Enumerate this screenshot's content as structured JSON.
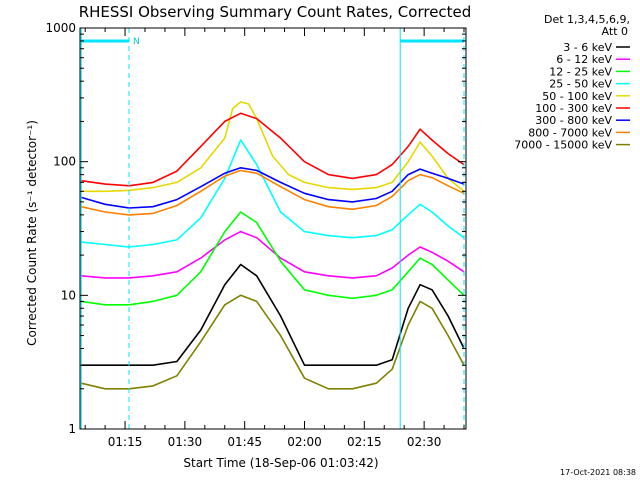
{
  "chart_data": {
    "type": "line",
    "title": "RHESSI Observing Summary Count Rates, Corrected",
    "xlabel": "Start Time (18-Sep-06 01:03:42)",
    "ylabel": "Corrected Count Rate (s⁻¹ detector⁻¹)",
    "y_scale": "log",
    "ylim": [
      1,
      1000
    ],
    "xlim": [
      "01:03:42",
      "02:40:30"
    ],
    "x_ticks": [
      "01:15",
      "01:30",
      "01:45",
      "02:00",
      "02:15",
      "02:30"
    ],
    "y_ticks": [
      "1",
      "10",
      "100",
      "1000"
    ],
    "legend_position": "outside-right",
    "legend_header": [
      "Det 1,3,4,5,6,9,",
      "Att 0"
    ],
    "series": [
      {
        "name": "3 - 6 keV",
        "color": "#000000",
        "times": [
          "01:04",
          "01:10",
          "01:16",
          "01:22",
          "01:28",
          "01:34",
          "01:40",
          "01:44",
          "01:48",
          "01:54",
          "02:00",
          "02:06",
          "02:12",
          "02:18",
          "02:22",
          "02:26",
          "02:29",
          "02:32",
          "02:36",
          "02:40"
        ],
        "values": [
          3.0,
          3.0,
          3.0,
          3.0,
          3.2,
          5.5,
          12,
          17,
          14,
          7,
          3.0,
          3.0,
          3.0,
          3.0,
          3.3,
          8,
          12,
          11,
          7,
          4
        ]
      },
      {
        "name": "6 - 12 keV",
        "color": "#ff00ff",
        "times": [
          "01:04",
          "01:10",
          "01:16",
          "01:22",
          "01:28",
          "01:34",
          "01:40",
          "01:44",
          "01:48",
          "01:54",
          "02:00",
          "02:06",
          "02:12",
          "02:18",
          "02:22",
          "02:26",
          "02:29",
          "02:32",
          "02:36",
          "02:40"
        ],
        "values": [
          14,
          13.5,
          13.5,
          14,
          15,
          19,
          26,
          30,
          27,
          19,
          15,
          14,
          13.5,
          14,
          16,
          20,
          23,
          21,
          18,
          15
        ]
      },
      {
        "name": "12 - 25 keV",
        "color": "#00ff00",
        "times": [
          "01:04",
          "01:10",
          "01:16",
          "01:22",
          "01:28",
          "01:34",
          "01:40",
          "01:44",
          "01:48",
          "01:54",
          "02:00",
          "02:06",
          "02:12",
          "02:18",
          "02:22",
          "02:26",
          "02:29",
          "02:32",
          "02:36",
          "02:40"
        ],
        "values": [
          9,
          8.5,
          8.5,
          9,
          10,
          15,
          30,
          42,
          35,
          18,
          11,
          10,
          9.5,
          10,
          11,
          15,
          19,
          17,
          13,
          10
        ]
      },
      {
        "name": "25 - 50 keV",
        "color": "#00ffff",
        "times": [
          "01:04",
          "01:10",
          "01:16",
          "01:22",
          "01:28",
          "01:34",
          "01:40",
          "01:44",
          "01:48",
          "01:54",
          "02:00",
          "02:06",
          "02:12",
          "02:18",
          "02:22",
          "02:26",
          "02:29",
          "02:32",
          "02:36",
          "02:40"
        ],
        "values": [
          25,
          24,
          23,
          24,
          26,
          38,
          75,
          145,
          95,
          42,
          30,
          28,
          27,
          28,
          31,
          40,
          48,
          42,
          33,
          27
        ]
      },
      {
        "name": "50 - 100 keV",
        "color": "#e6d800",
        "times": [
          "01:04",
          "01:10",
          "01:16",
          "01:22",
          "01:28",
          "01:34",
          "01:40",
          "01:42",
          "01:44",
          "01:46",
          "01:48",
          "01:52",
          "01:56",
          "02:00",
          "02:06",
          "02:12",
          "02:18",
          "02:22",
          "02:26",
          "02:29",
          "02:32",
          "02:36",
          "02:40"
        ],
        "values": [
          60,
          60,
          61,
          64,
          70,
          90,
          150,
          250,
          280,
          270,
          210,
          110,
          80,
          70,
          64,
          62,
          64,
          70,
          100,
          140,
          110,
          75,
          60
        ]
      },
      {
        "name": "100 - 300 keV",
        "color": "#ff0000",
        "times": [
          "01:04",
          "01:10",
          "01:16",
          "01:22",
          "01:28",
          "01:34",
          "01:40",
          "01:44",
          "01:48",
          "01:54",
          "02:00",
          "02:06",
          "02:12",
          "02:18",
          "02:22",
          "02:26",
          "02:29",
          "02:32",
          "02:36",
          "02:40"
        ],
        "values": [
          72,
          68,
          66,
          70,
          85,
          130,
          200,
          230,
          210,
          150,
          100,
          80,
          75,
          80,
          95,
          130,
          175,
          145,
          115,
          95
        ]
      },
      {
        "name": "300 - 800 keV",
        "color": "#0000ff",
        "times": [
          "01:04",
          "01:10",
          "01:16",
          "01:22",
          "01:28",
          "01:34",
          "01:40",
          "01:44",
          "01:48",
          "01:54",
          "02:00",
          "02:06",
          "02:12",
          "02:18",
          "02:22",
          "02:26",
          "02:29",
          "02:32",
          "02:36",
          "02:40"
        ],
        "values": [
          54,
          48,
          45,
          46,
          52,
          65,
          82,
          90,
          86,
          70,
          58,
          52,
          50,
          53,
          60,
          80,
          88,
          82,
          75,
          68
        ]
      },
      {
        "name": "800 - 7000 keV",
        "color": "#ff8000",
        "times": [
          "01:04",
          "01:10",
          "01:16",
          "01:22",
          "01:28",
          "01:34",
          "01:40",
          "01:44",
          "01:48",
          "01:54",
          "02:00",
          "02:06",
          "02:12",
          "02:18",
          "02:22",
          "02:26",
          "02:29",
          "02:32",
          "02:36",
          "02:40"
        ],
        "values": [
          46,
          42,
          40,
          41,
          47,
          60,
          78,
          86,
          82,
          65,
          52,
          46,
          44,
          47,
          55,
          72,
          80,
          76,
          66,
          58
        ]
      },
      {
        "name": "7000 - 15000 keV",
        "color": "#808000",
        "times": [
          "01:04",
          "01:10",
          "01:16",
          "01:22",
          "01:28",
          "01:34",
          "01:40",
          "01:44",
          "01:48",
          "01:54",
          "02:00",
          "02:06",
          "02:12",
          "02:18",
          "02:22",
          "02:26",
          "02:29",
          "02:32",
          "02:36",
          "02:40"
        ],
        "values": [
          2.2,
          2.0,
          2.0,
          2.1,
          2.5,
          4.5,
          8.5,
          10,
          9,
          5,
          2.4,
          2.0,
          2.0,
          2.2,
          2.8,
          6,
          9,
          8,
          5,
          3
        ]
      }
    ],
    "annotations": {
      "top_bars": [
        {
          "start": "01:04",
          "end": "01:16",
          "label": "N"
        },
        {
          "start": "02:24",
          "end": "02:40",
          "label": ""
        }
      ],
      "vertical_lines": [
        "01:04",
        "01:16",
        "02:24",
        "02:40"
      ]
    }
  },
  "footer": {
    "timestamp": "17-Oct-2021 08:38"
  }
}
